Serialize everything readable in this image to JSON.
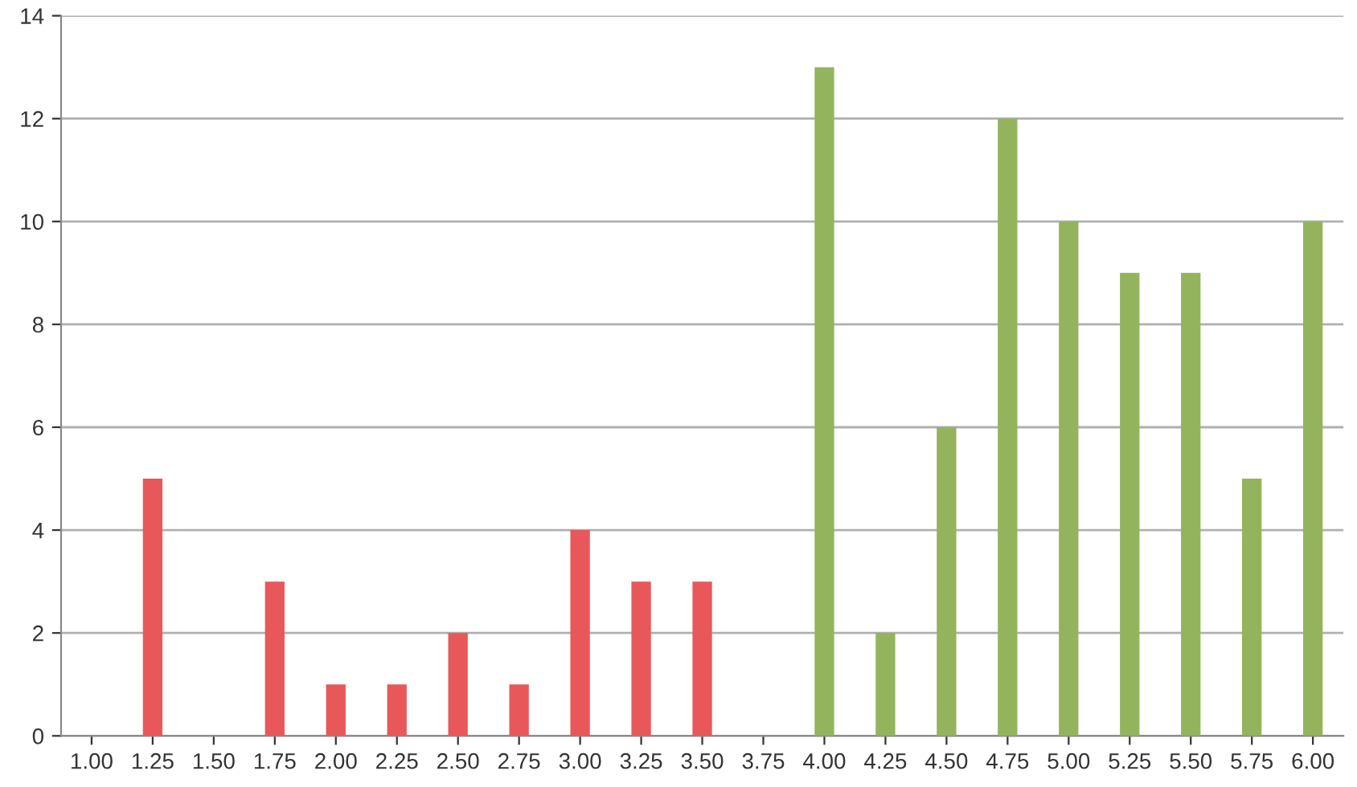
{
  "chart_data": {
    "type": "bar",
    "categories": [
      "1.00",
      "1.25",
      "1.50",
      "1.75",
      "2.00",
      "2.25",
      "2.50",
      "2.75",
      "3.00",
      "3.25",
      "3.50",
      "3.75",
      "4.00",
      "4.25",
      "4.50",
      "4.75",
      "5.00",
      "5.25",
      "5.50",
      "5.75",
      "6.00"
    ],
    "values": [
      0,
      5,
      0,
      3,
      1,
      1,
      2,
      1,
      4,
      3,
      3,
      0,
      13,
      2,
      6,
      12,
      10,
      9,
      9,
      5,
      10
    ],
    "colors": [
      "#e8585a",
      "#e8585a",
      "#e8585a",
      "#e8585a",
      "#e8585a",
      "#e8585a",
      "#e8585a",
      "#e8585a",
      "#e8585a",
      "#e8585a",
      "#e8585a",
      "#e8585a",
      "#93b45c",
      "#93b45c",
      "#93b45c",
      "#93b45c",
      "#93b45c",
      "#93b45c",
      "#93b45c",
      "#93b45c",
      "#93b45c"
    ],
    "ylim": [
      0,
      14
    ],
    "yticks": [
      0,
      2,
      4,
      6,
      8,
      10,
      12,
      14
    ],
    "grid": "y",
    "legend": false
  }
}
